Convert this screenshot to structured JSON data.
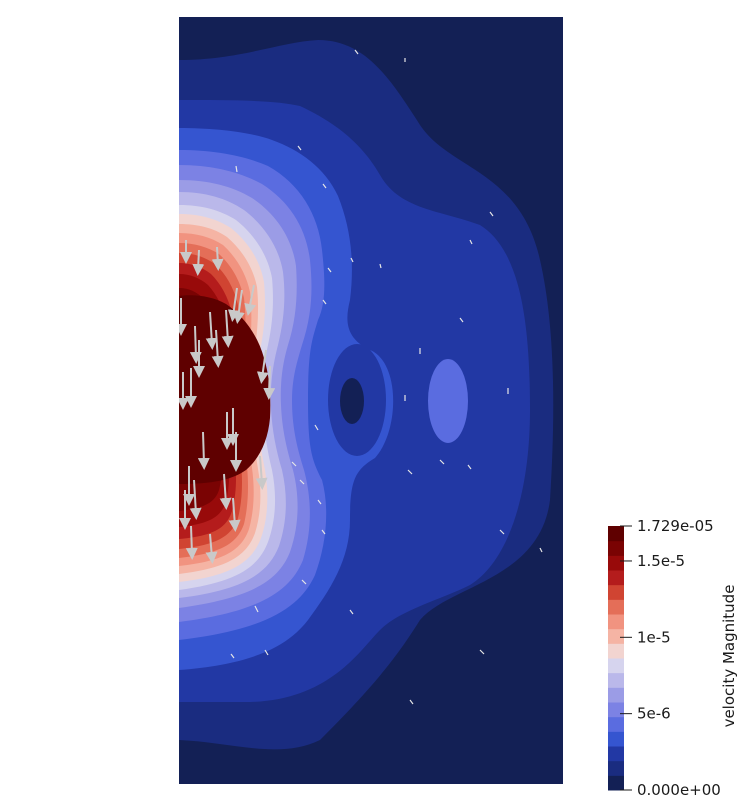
{
  "chart_data": {
    "type": "heatmap",
    "variable": "velocity Magnitude",
    "range": [
      0.0,
      1.729e-05
    ],
    "colormap": {
      "name": "Cool to Warm (bands)",
      "band_colors": [
        "#132055",
        "#1a2c80",
        "#2238a4",
        "#3555d0",
        "#5a6ce0",
        "#7c82e4",
        "#9b9ce6",
        "#bab8ea",
        "#d6d4ee",
        "#f2d4d0",
        "#f5b4a4",
        "#f19380",
        "#e46e58",
        "#d04432",
        "#b41c1c",
        "#980a0a",
        "#7a0303",
        "#5f0000"
      ]
    },
    "colorbar": {
      "title": "velocity Magnitude",
      "ticks": [
        {
          "label": "1.729e-05",
          "value": 1.729e-05
        },
        {
          "label": "1.5e-5",
          "value": 1.5e-05
        },
        {
          "label": "1e-5",
          "value": 1e-05
        },
        {
          "label": "5e-6",
          "value": 5e-06
        },
        {
          "label": "0.000e+00",
          "value": 0.0
        }
      ]
    },
    "features": [
      {
        "name": "high-velocity-core",
        "max_value": 1.729e-05
      },
      {
        "name": "low-velocity-vortex"
      },
      {
        "name": "secondary-bump"
      }
    ],
    "glyphs": {
      "type": "arrows",
      "dominant_direction": "downward"
    }
  }
}
